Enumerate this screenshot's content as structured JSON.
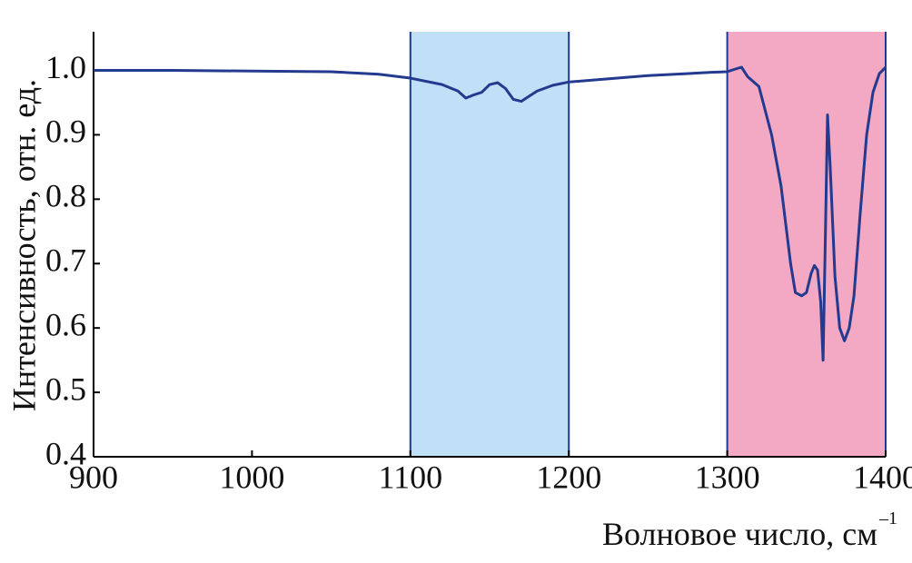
{
  "chart_data": {
    "type": "line",
    "ylabel": "Интенсивность, отн. ед.",
    "xlabel": "Волновое число, см",
    "xlabel_superscript": "–1",
    "xlim": [
      900,
      1400
    ],
    "ylim": [
      0.4,
      1.06
    ],
    "xticks": [
      900,
      1000,
      1100,
      1200,
      1300,
      1400
    ],
    "yticks": [
      0.4,
      0.5,
      0.6,
      0.7,
      0.8,
      0.9,
      {
        "value": 1,
        "label": "1.0"
      }
    ],
    "bands": [
      {
        "x0": 1100,
        "x1": 1200,
        "color": "#bfe0f6"
      },
      {
        "x0": 1300,
        "x1": 1400,
        "color": "#f3a9c3"
      }
    ],
    "band_edge_color": "#1f3a93",
    "x": [
      900,
      950,
      1000,
      1050,
      1080,
      1100,
      1120,
      1130,
      1135,
      1140,
      1145,
      1150,
      1155,
      1160,
      1165,
      1170,
      1175,
      1180,
      1190,
      1200,
      1250,
      1290,
      1300,
      1305,
      1309,
      1313,
      1320,
      1328,
      1334,
      1340,
      1343,
      1347,
      1350,
      1353,
      1355,
      1357,
      1359,
      1360.5,
      1362,
      1363.3,
      1365,
      1368,
      1371,
      1374,
      1377,
      1380,
      1384,
      1388,
      1392,
      1396,
      1398,
      1400
    ],
    "series": [
      {
        "color": "#233a8f",
        "values": [
          1.0,
          1.0,
          0.999,
          0.998,
          0.994,
          0.988,
          0.978,
          0.968,
          0.957,
          0.962,
          0.966,
          0.978,
          0.981,
          0.972,
          0.955,
          0.952,
          0.96,
          0.968,
          0.977,
          0.982,
          0.992,
          0.997,
          0.998,
          1.002,
          1.005,
          0.99,
          0.975,
          0.9,
          0.82,
          0.7,
          0.655,
          0.65,
          0.655,
          0.685,
          0.697,
          0.69,
          0.64,
          0.55,
          0.75,
          0.931,
          0.85,
          0.68,
          0.6,
          0.58,
          0.6,
          0.65,
          0.78,
          0.9,
          0.966,
          0.995,
          1.0,
          1.005
        ]
      }
    ]
  }
}
